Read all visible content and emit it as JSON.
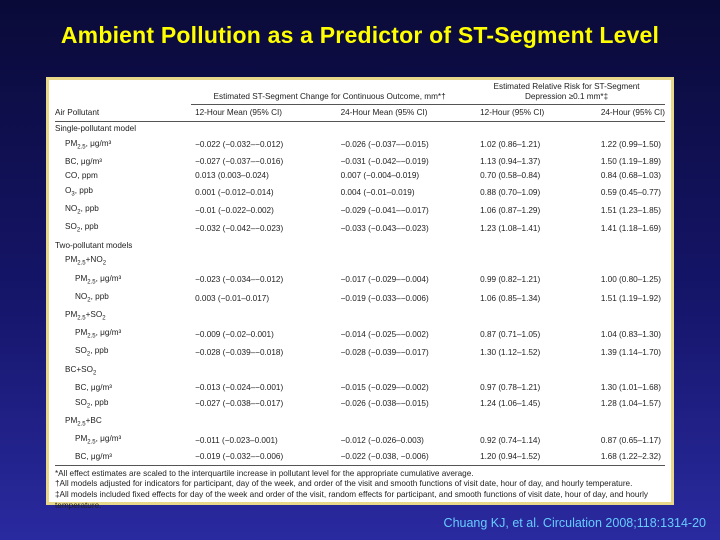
{
  "slide": {
    "title": "Ambient Pollution as a Predictor of ST-Segment Level",
    "citation": "Chuang KJ, et al. Circulation 2008;118:1314-20"
  },
  "table": {
    "group_headers": {
      "continuous": "Estimated ST-Segment Change for Continuous Outcome, mm*†",
      "relative_risk_line1": "Estimated Relative Risk for ST-Segment",
      "relative_risk_line2": "Depression ≥0.1 mm*‡"
    },
    "column_headers": [
      "Air Pollutant",
      "12-Hour Mean (95% CI)",
      "24-Hour Mean (95% CI)",
      "12-Hour (95% CI)",
      "24-Hour (95% CI)"
    ],
    "sections": {
      "single": "Single-pollutant model",
      "two": "Two-pollutant models"
    },
    "single_rows": [
      {
        "label": "PM2.5, μg/m³",
        "c1": "−0.022 (−0.032–−0.012)",
        "c2": "−0.026 (−0.037–−0.015)",
        "c3": "1.02 (0.86–1.21)",
        "c4": "1.22 (0.99–1.50)"
      },
      {
        "label": "BC, μg/m³",
        "c1": "−0.027 (−0.037–−0.016)",
        "c2": "−0.031 (−0.042–−0.019)",
        "c3": "1.13 (0.94–1.37)",
        "c4": "1.50 (1.19–1.89)"
      },
      {
        "label": "CO, ppm",
        "c1": "0.013 (0.003–0.024)",
        "c2": "0.007 (−0.004–0.019)",
        "c3": "0.70 (0.58–0.84)",
        "c4": "0.84 (0.68–1.03)"
      },
      {
        "label": "O3, ppb",
        "c1": "0.001 (−0.012–0.014)",
        "c2": "0.004 (−0.01–0.019)",
        "c3": "0.88 (0.70–1.09)",
        "c4": "0.59 (0.45–0.77)"
      },
      {
        "label": "NO2, ppb",
        "c1": "−0.01 (−0.022–0.002)",
        "c2": "−0.029 (−0.041–−0.017)",
        "c3": "1.06 (0.87–1.29)",
        "c4": "1.51 (1.23–1.85)"
      },
      {
        "label": "SO2, ppb",
        "c1": "−0.032 (−0.042–−0.023)",
        "c2": "−0.033 (−0.043–−0.023)",
        "c3": "1.23 (1.08–1.41)",
        "c4": "1.41 (1.18–1.69)"
      }
    ],
    "pair_groups": [
      {
        "label": "PM2.5+NO2",
        "rows": [
          {
            "label": "PM2.5, μg/m³",
            "c1": "−0.023 (−0.034–−0.012)",
            "c2": "−0.017 (−0.029–−0.004)",
            "c3": "0.99 (0.82–1.21)",
            "c4": "1.00 (0.80–1.25)"
          },
          {
            "label": "NO2, ppb",
            "c1": "0.003 (−0.01–0.017)",
            "c2": "−0.019 (−0.033–−0.006)",
            "c3": "1.06 (0.85–1.34)",
            "c4": "1.51 (1.19–1.92)"
          }
        ]
      },
      {
        "label": "PM2.5+SO2",
        "rows": [
          {
            "label": "PM2.5, μg/m³",
            "c1": "−0.009 (−0.02–0.001)",
            "c2": "−0.014 (−0.025–−0.002)",
            "c3": "0.87 (0.71–1.05)",
            "c4": "1.04 (0.83–1.30)"
          },
          {
            "label": "SO2, ppb",
            "c1": "−0.028 (−0.039–−0.018)",
            "c2": "−0.028 (−0.039–−0.017)",
            "c3": "1.30 (1.12–1.52)",
            "c4": "1.39 (1.14–1.70)"
          }
        ]
      },
      {
        "label": "BC+SO2",
        "rows": [
          {
            "label": "BC, μg/m³",
            "c1": "−0.013 (−0.024–−0.001)",
            "c2": "−0.015 (−0.029–−0.002)",
            "c3": "0.97 (0.78–1.21)",
            "c4": "1.30 (1.01–1.68)"
          },
          {
            "label": "SO2, ppb",
            "c1": "−0.027 (−0.038–−0.017)",
            "c2": "−0.026 (−0.038–−0.015)",
            "c3": "1.24 (1.06–1.45)",
            "c4": "1.28 (1.04–1.57)"
          }
        ]
      },
      {
        "label": "PM2.5+BC",
        "rows": [
          {
            "label": "PM2.5, μg/m³",
            "c1": "−0.011 (−0.023–0.001)",
            "c2": "−0.012 (−0.026–0.003)",
            "c3": "0.92 (0.74–1.14)",
            "c4": "0.87 (0.65–1.17)"
          },
          {
            "label": "BC, μg/m³",
            "c1": "−0.019 (−0.032–−0.006)",
            "c2": "−0.022 (−0.038, −0.006)",
            "c3": "1.20 (0.94–1.52)",
            "c4": "1.68 (1.22–2.32)"
          }
        ]
      }
    ],
    "footnotes": [
      "*All effect estimates are scaled to the interquartile increase in pollutant level for the appropriate cumulative average.",
      "†All models adjusted for indicators for participant, day of the week, and order of the visit and smooth functions of visit date, hour of day, and hourly temperature.",
      "‡All models included fixed effects for day of the week and order of the visit, random effects for participant, and smooth functions of visit date, hour of day, and hourly temperature."
    ]
  }
}
